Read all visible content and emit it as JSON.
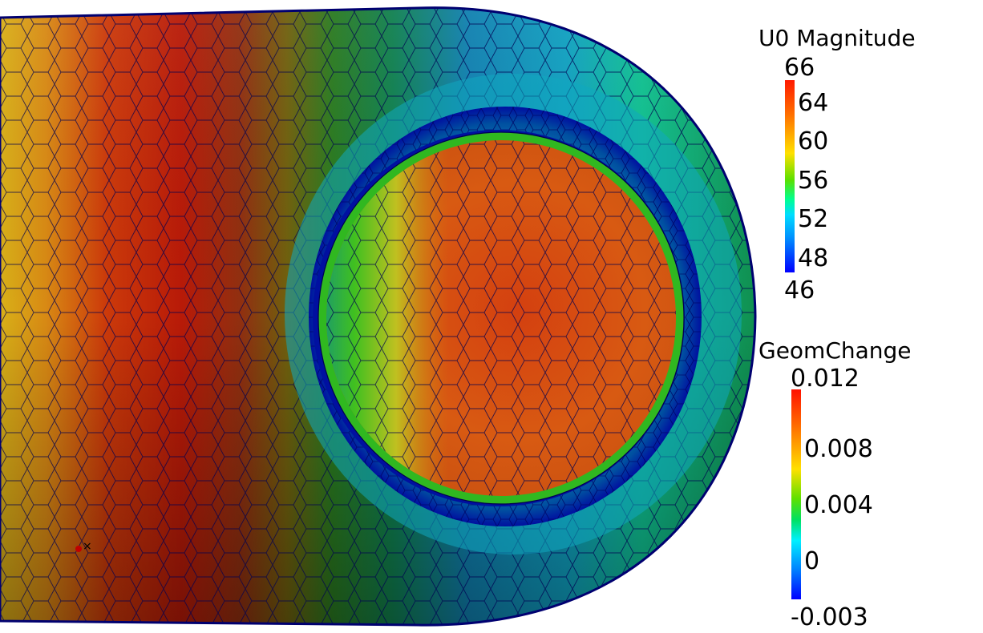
{
  "scene": {
    "colors": {
      "hot": "#c8220a",
      "warm": "#d86a14",
      "yellow": "#d8c020",
      "green": "#30b820",
      "teal": "#10a0a8",
      "blue": "#1080c0",
      "dark_blue": "#0010a0",
      "edge": "#000070"
    }
  },
  "legend_u0": {
    "title": "U0 Magnitude",
    "max": "66",
    "ticks": [
      "64",
      "60",
      "56",
      "52",
      "48"
    ],
    "min": "46"
  },
  "legend_geom": {
    "title": "GeomChange",
    "max": "0.012",
    "ticks": [
      "0.008",
      "0.004",
      "0"
    ],
    "min": "-0.003"
  }
}
